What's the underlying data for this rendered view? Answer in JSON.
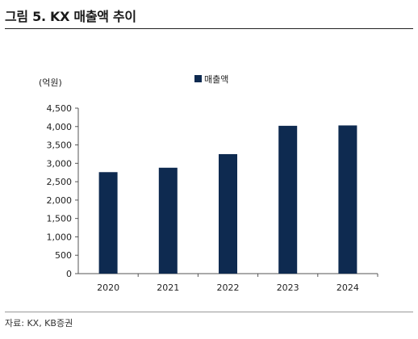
{
  "page": {
    "title": "그림 5. KX 매출액 추이",
    "source": "자료: KX, KB증권"
  },
  "chart_data": {
    "type": "bar",
    "title": "",
    "unit_label": "(억원)",
    "categories": [
      "2020",
      "2021",
      "2022",
      "2023",
      "2024"
    ],
    "series": [
      {
        "name": "매출액",
        "values": [
          2760,
          2880,
          3250,
          4020,
          4030
        ],
        "color": "#0e2a50"
      }
    ],
    "ylim": [
      0,
      4500
    ],
    "yticks": [
      0,
      500,
      1000,
      1500,
      2000,
      2500,
      3000,
      3500,
      4000,
      4500
    ],
    "ytick_labels": [
      "0",
      "500",
      "1,000",
      "1,500",
      "2,000",
      "2,500",
      "3,000",
      "3,500",
      "4,000",
      "4,500"
    ],
    "grid": false,
    "legend_position": "top-center"
  }
}
